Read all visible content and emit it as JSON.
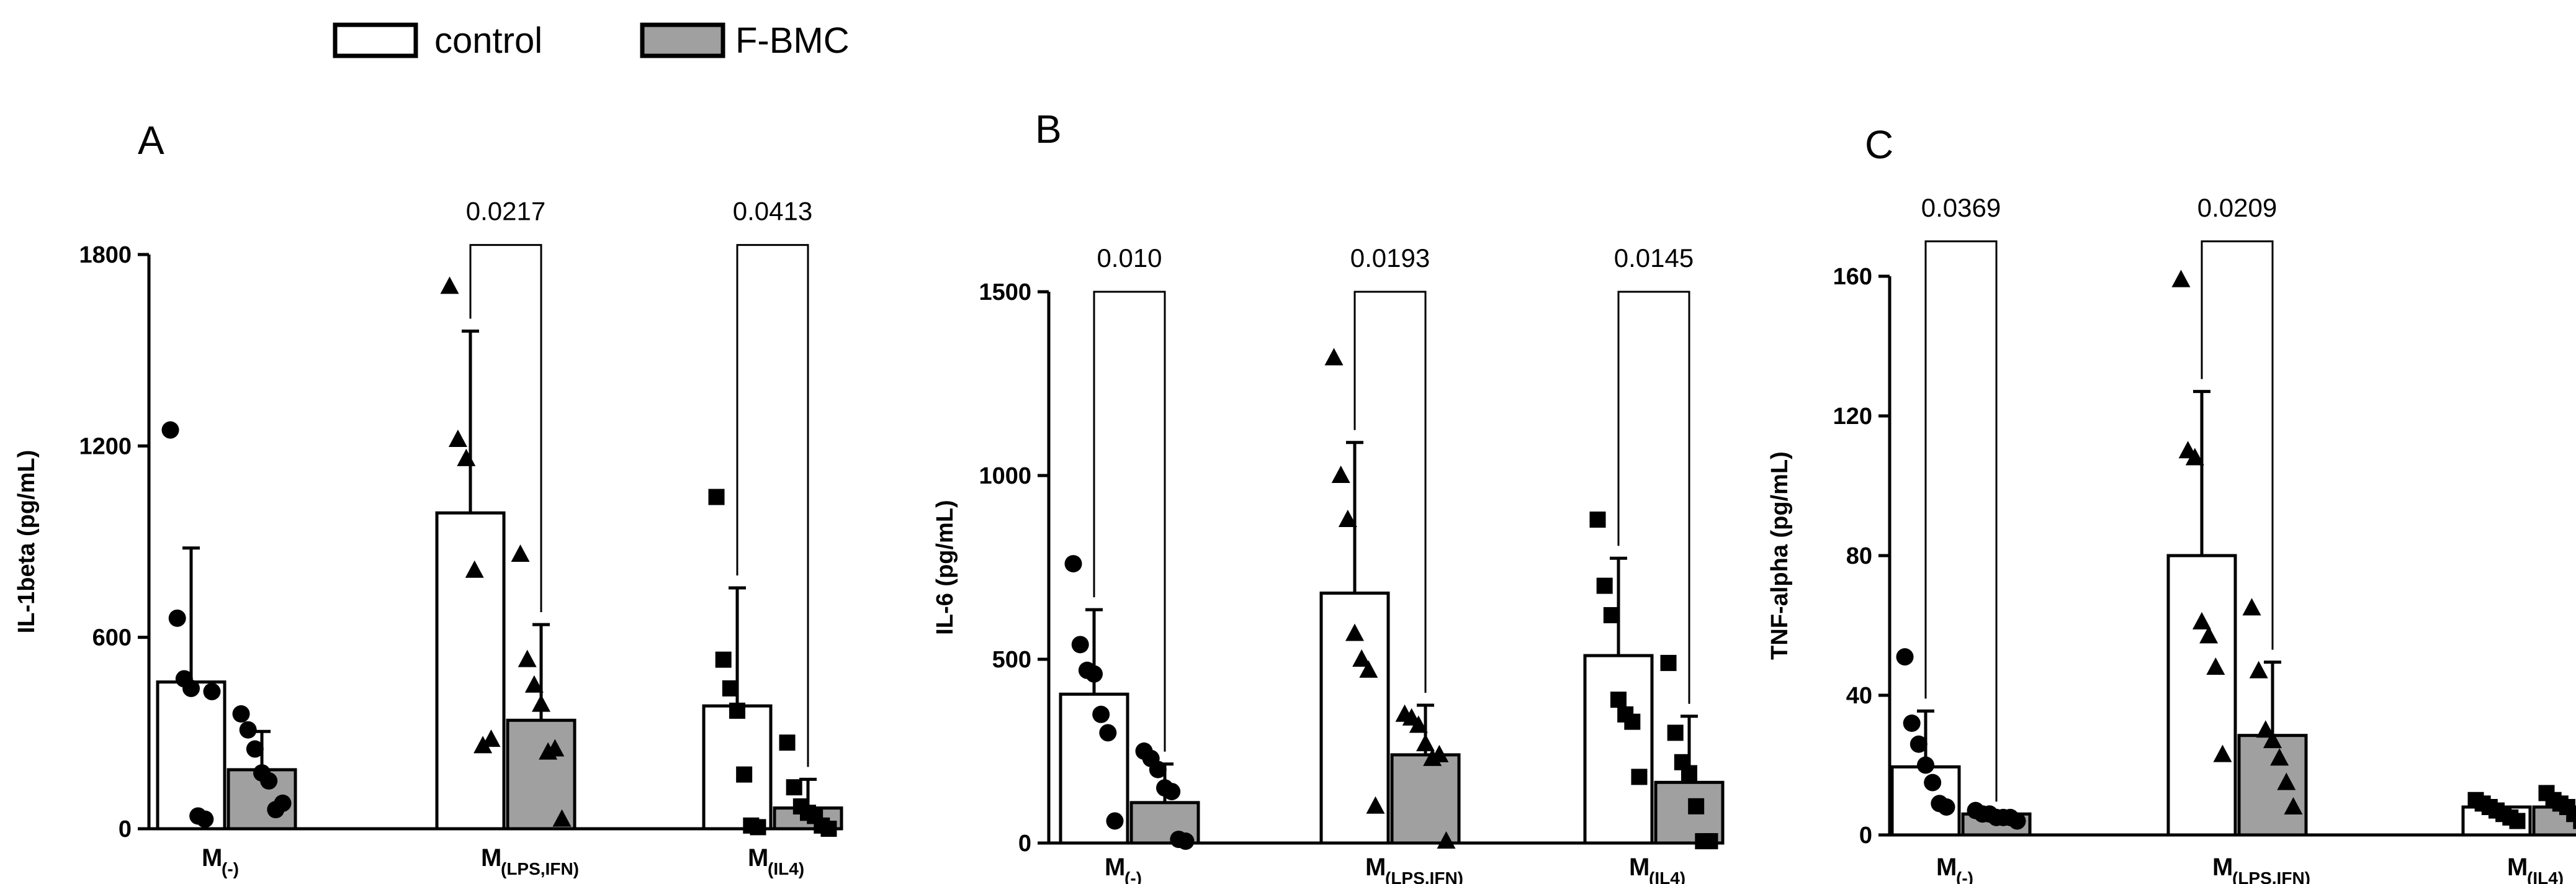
{
  "legend": {
    "items": [
      {
        "label": "control",
        "color": "#ffffff"
      },
      {
        "label": "F-BMC",
        "color": "#a0a0a0"
      }
    ]
  },
  "chart_data": [
    {
      "panel": "A",
      "type": "bar",
      "ylabel": "IL-1beta  (pg/mL)",
      "ylim": [
        0,
        1800
      ],
      "yticks": [
        0,
        600,
        1200,
        1800
      ],
      "categories": [
        {
          "main": "M",
          "sub": "(-)"
        },
        {
          "main": "M",
          "sub": "(LPS,IFN)"
        },
        {
          "main": "M",
          "sub": "(IL4)"
        }
      ],
      "marker": [
        "circle",
        "triangle",
        "square"
      ],
      "series": [
        {
          "name": "control",
          "values": [
            460,
            990,
            385
          ],
          "err": [
            420,
            570,
            370
          ],
          "points": [
            [
              1250,
              660,
              470,
              440,
              40,
              30,
              430
            ],
            [
              1700,
              1220,
              1160,
              810,
              260,
              280
            ],
            [
              1040,
              530,
              440,
              370,
              170,
              10,
              5
            ]
          ]
        },
        {
          "name": "F-BMC",
          "values": [
            185,
            340,
            65
          ],
          "err": [
            120,
            300,
            90
          ],
          "points": [
            [
              360,
              310,
              250,
              175,
              150,
              60,
              80
            ],
            [
              860,
              530,
              450,
              390,
              240,
              250,
              30
            ],
            [
              270,
              130,
              70,
              50,
              40,
              10,
              0
            ]
          ]
        }
      ],
      "annotations": [
        {
          "category": 1,
          "text": "0.0217",
          "top": 1830
        },
        {
          "category": 2,
          "text": "0.0413",
          "top": 1830
        }
      ]
    },
    {
      "panel": "B",
      "type": "bar",
      "ylabel": "IL-6   (pg/mL)",
      "ylim": [
        0,
        1500
      ],
      "yticks": [
        0,
        500,
        1000,
        1500
      ],
      "categories": [
        {
          "main": "M",
          "sub": "(-)"
        },
        {
          "main": "M",
          "sub": "(LPS,IFN)"
        },
        {
          "main": "M",
          "sub": "(IL4)"
        }
      ],
      "marker": [
        "circle",
        "triangle",
        "square"
      ],
      "series": [
        {
          "name": "control",
          "values": [
            405,
            680,
            510
          ],
          "err": [
            230,
            410,
            265
          ],
          "points": [
            [
              760,
              540,
              470,
              460,
              350,
              300,
              60
            ],
            [
              1320,
              1000,
              880,
              570,
              500,
              470,
              100
            ],
            [
              880,
              700,
              620,
              390,
              350,
              330,
              180
            ]
          ]
        },
        {
          "name": "F-BMC",
          "values": [
            110,
            240,
            165
          ],
          "err": [
            105,
            135,
            180
          ],
          "points": [
            [
              250,
              230,
              200,
              150,
              140,
              10,
              5
            ],
            [
              350,
              340,
              320,
              270,
              230,
              240,
              5
            ],
            [
              490,
              300,
              220,
              190,
              100,
              5,
              5
            ]
          ]
        }
      ],
      "annotations": [
        {
          "category": 0,
          "text": "0.010",
          "top": 1500
        },
        {
          "category": 1,
          "text": "0.0193",
          "top": 1500
        },
        {
          "category": 2,
          "text": "0.0145",
          "top": 1500
        }
      ]
    },
    {
      "panel": "C",
      "type": "bar",
      "ylabel": "TNF-alpha  (pg/mL)",
      "ylim": [
        0,
        160
      ],
      "yticks": [
        0,
        40,
        80,
        120,
        160
      ],
      "categories": [
        {
          "main": "M",
          "sub": "(-)"
        },
        {
          "main": "M",
          "sub": "(LPS,IFN)"
        },
        {
          "main": "M",
          "sub": "(IL4)"
        }
      ],
      "marker": [
        "circle",
        "triangle",
        "square"
      ],
      "series": [
        {
          "name": "control",
          "values": [
            19.5,
            80,
            8
          ],
          "err": [
            16,
            47,
            0
          ],
          "points": [
            [
              51,
              32,
              26,
              20,
              15,
              9,
              8
            ],
            [
              159,
              110,
              108,
              61,
              57,
              48,
              23
            ],
            [
              10,
              9,
              8,
              7,
              6,
              5,
              4
            ]
          ]
        },
        {
          "name": "F-BMC",
          "values": [
            6,
            28.5,
            8
          ],
          "err": [
            0,
            21,
            0
          ],
          "points": [
            [
              7,
              6,
              6,
              5,
              5,
              5,
              4
            ],
            [
              65,
              47,
              30,
              27,
              22,
              15,
              8
            ],
            [
              12,
              10,
              9,
              8,
              6,
              4,
              3
            ]
          ]
        }
      ],
      "annotations": [
        {
          "category": 0,
          "text": "0.0369",
          "top": 170
        },
        {
          "category": 1,
          "text": "0.0209",
          "top": 170
        }
      ]
    }
  ]
}
